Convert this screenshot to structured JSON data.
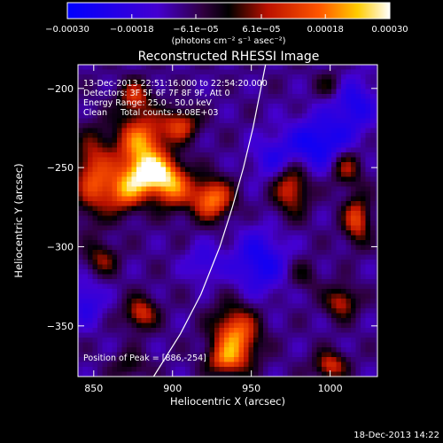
{
  "chart_data": {
    "type": "heatmap",
    "title": "Reconstructed RHESSI Image",
    "xlabel": "Heliocentric X (arcsec)",
    "ylabel": "Heliocentric Y (arcsec)",
    "xlim": [
      840,
      1030
    ],
    "ylim": [
      -382,
      -185
    ],
    "x_ticks": [
      850,
      900,
      950,
      1000
    ],
    "x_tick_labels": [
      "850",
      "900",
      "950",
      "1000"
    ],
    "y_ticks": [
      -200,
      -250,
      -300,
      -350
    ],
    "y_tick_labels": [
      "−200",
      "−250",
      "−300",
      "−350"
    ],
    "colorbar": {
      "range": [
        -0.0003,
        0.0003
      ],
      "tick_values": [
        -0.0003,
        -0.00018,
        -6.1e-05,
        6.1e-05,
        0.00018,
        0.0003
      ],
      "tick_labels": [
        "−0.00030",
        "−0.00018",
        "−6.1e−05",
        "6.1e−05",
        "0.00018",
        "0.00030"
      ],
      "unit_label": "(photons cm⁻² s⁻¹ asec⁻²)",
      "colors": [
        "#0000ff",
        "#4400d0",
        "#300040",
        "#000000",
        "#bb1100",
        "#ff5500",
        "#ffcc00",
        "#ffffff"
      ]
    },
    "annotations": {
      "time_range": "13-Dec-2013 22:51:16.000 to 22:54:20.000",
      "detectors": "Detectors: 3F 5F 6F 7F 8F 9F, Att 0",
      "energy": "Energy Range: 25.0 - 50.0 keV",
      "clean": "Clean     Total counts: 9.08E+03",
      "peak": "Position of Peak = [886,-254]"
    },
    "limb_curve": [
      [
        888,
        -382
      ],
      [
        905,
        -355
      ],
      [
        918,
        -330
      ],
      [
        930,
        -300
      ],
      [
        938,
        -275
      ],
      [
        945,
        -250
      ],
      [
        951,
        -225
      ],
      [
        956,
        -200
      ],
      [
        959,
        -185
      ]
    ],
    "hot_spots": [
      {
        "x": 880,
        "y": -235,
        "amp": 0.00029,
        "sx": 11,
        "sy": 13
      },
      {
        "x": 886,
        "y": -254,
        "amp": 0.0003,
        "sx": 10,
        "sy": 8
      },
      {
        "x": 870,
        "y": -265,
        "amp": 0.00025,
        "sx": 9,
        "sy": 9
      },
      {
        "x": 850,
        "y": -255,
        "amp": 0.00022,
        "sx": 9,
        "sy": 18
      },
      {
        "x": 900,
        "y": -262,
        "amp": 0.00024,
        "sx": 9,
        "sy": 10
      },
      {
        "x": 925,
        "y": -270,
        "amp": 0.00028,
        "sx": 9,
        "sy": 9
      },
      {
        "x": 905,
        "y": -223,
        "amp": 0.0002,
        "sx": 8,
        "sy": 7
      },
      {
        "x": 876,
        "y": -205,
        "amp": 0.00018,
        "sx": 7,
        "sy": 7
      },
      {
        "x": 855,
        "y": -308,
        "amp": 0.00014,
        "sx": 7,
        "sy": 7
      },
      {
        "x": 880,
        "y": -342,
        "amp": 0.0002,
        "sx": 7,
        "sy": 7
      },
      {
        "x": 873,
        "y": -375,
        "amp": 0.0001,
        "sx": 7,
        "sy": 6
      },
      {
        "x": 940,
        "y": -357,
        "amp": 0.00029,
        "sx": 10,
        "sy": 13
      },
      {
        "x": 933,
        "y": -372,
        "amp": 0.00016,
        "sx": 8,
        "sy": 6
      },
      {
        "x": 975,
        "y": -262,
        "amp": 0.00021,
        "sx": 8,
        "sy": 12
      },
      {
        "x": 1010,
        "y": -250,
        "amp": 0.00017,
        "sx": 7,
        "sy": 8
      },
      {
        "x": 1017,
        "y": -283,
        "amp": 0.00022,
        "sx": 6,
        "sy": 10
      },
      {
        "x": 1007,
        "y": -335,
        "amp": 0.00018,
        "sx": 7,
        "sy": 7
      },
      {
        "x": 1000,
        "y": -375,
        "amp": 0.0002,
        "sx": 7,
        "sy": 6
      },
      {
        "x": 983,
        "y": -318,
        "amp": 8e-05,
        "sx": 7,
        "sy": 7
      },
      {
        "x": 1000,
        "y": -198,
        "amp": 0.0001,
        "sx": 6,
        "sy": 6
      },
      {
        "x": 955,
        "y": -310,
        "amp": -0.00016,
        "sx": 12,
        "sy": 14
      },
      {
        "x": 993,
        "y": -235,
        "amp": -0.00018,
        "sx": 14,
        "sy": 12
      },
      {
        "x": 1015,
        "y": -210,
        "amp": -0.00014,
        "sx": 10,
        "sy": 12
      },
      {
        "x": 965,
        "y": -245,
        "amp": -0.00012,
        "sx": 10,
        "sy": 10
      },
      {
        "x": 845,
        "y": -335,
        "amp": -0.00012,
        "sx": 8,
        "sy": 10
      },
      {
        "x": 920,
        "y": -310,
        "amp": -0.0001,
        "sx": 8,
        "sy": 8
      }
    ],
    "grid": false,
    "legend": "none"
  },
  "footer": {
    "timestamp": "18-Dec-2013 14:22"
  }
}
